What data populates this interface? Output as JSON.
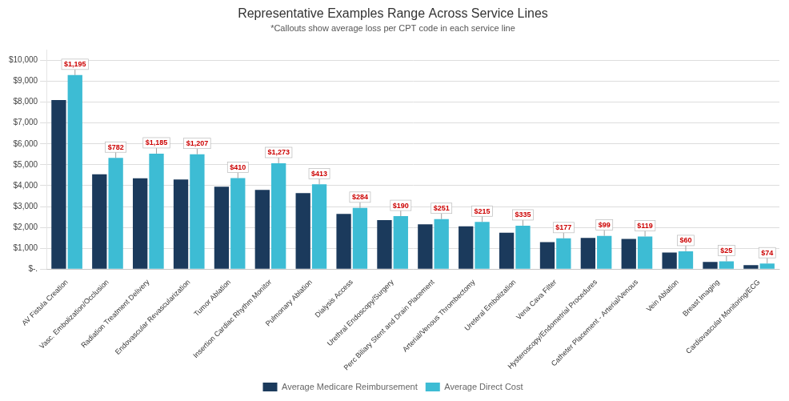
{
  "chart_data": {
    "type": "bar",
    "title": "Representative Examples Range Across Service Lines",
    "subtitle": "*Callouts show average loss per CPT code in each service line",
    "categories": [
      "AV Fistula Creation",
      "Vasc. Embolization/Occlusion",
      "Radiation Treatment Delivery",
      "Endovascular Revascularization",
      "Tumor Ablation",
      "Insertion Cardiac Rhythm Monitor",
      "Pulmonary Ablation",
      "Dialysis Access",
      "Urethral Endoscopy/Surgery",
      "Perc Biliary Stent and Drain Placement",
      "Arterial/Venous Thrombectomy",
      "Ureteral Embolization",
      "Vena Cava Filter",
      "Hysteroscopy/Endometrial Procedures",
      "Catheter Placement - Arterial/Venous",
      "Vein Ablation",
      "Breast Imaging",
      "Cardiovascular Monitoring/ECG"
    ],
    "series": [
      {
        "name": "Average Medicare Reimbursement",
        "color": "#1b3a5c",
        "values": [
          8100,
          4550,
          4350,
          4300,
          3950,
          3800,
          3650,
          2650,
          2350,
          2150,
          2050,
          1750,
          1300,
          1500,
          1450,
          800,
          350,
          200
        ]
      },
      {
        "name": "Average Direct Cost",
        "color": "#3dbcd4",
        "values": [
          9295,
          5332,
          5535,
          5507,
          4360,
          5073,
          4063,
          2934,
          2540,
          2401,
          2265,
          2085,
          1477,
          1599,
          1569,
          860,
          375,
          274
        ]
      }
    ],
    "annotations": [
      {
        "category": "AV Fistula Creation",
        "series": "Average Direct Cost",
        "text": "$1,195",
        "color": "#cc0000"
      },
      {
        "category": "Vasc. Embolization/Occlusion",
        "series": "Average Direct Cost",
        "text": "$782",
        "color": "#cc0000"
      },
      {
        "category": "Radiation Treatment Delivery",
        "series": "Average Direct Cost",
        "text": "$1,185",
        "color": "#cc0000"
      },
      {
        "category": "Endovascular Revascularization",
        "series": "Average Direct Cost",
        "text": "$1,207",
        "color": "#cc0000"
      },
      {
        "category": "Tumor Ablation",
        "series": "Average Direct Cost",
        "text": "$410",
        "color": "#cc0000"
      },
      {
        "category": "Insertion Cardiac Rhythm Monitor",
        "series": "Average Direct Cost",
        "text": "$1,273",
        "color": "#cc0000"
      },
      {
        "category": "Pulmonary Ablation",
        "series": "Average Direct Cost",
        "text": "$413",
        "color": "#cc0000"
      },
      {
        "category": "Dialysis Access",
        "series": "Average Direct Cost",
        "text": "$284",
        "color": "#cc0000"
      },
      {
        "category": "Urethral Endoscopy/Surgery",
        "series": "Average Direct Cost",
        "text": "$190",
        "color": "#cc0000"
      },
      {
        "category": "Perc Biliary Stent and Drain Placement",
        "series": "Average Direct Cost",
        "text": "$251",
        "color": "#cc0000"
      },
      {
        "category": "Arterial/Venous Thrombectomy",
        "series": "Average Direct Cost",
        "text": "$215",
        "color": "#cc0000"
      },
      {
        "category": "Ureteral Embolization",
        "series": "Average Direct Cost",
        "text": "$335",
        "color": "#cc0000"
      },
      {
        "category": "Vena Cava Filter",
        "series": "Average Direct Cost",
        "text": "$177",
        "color": "#cc0000"
      },
      {
        "category": "Hysteroscopy/Endometrial Procedures",
        "series": "Average Direct Cost",
        "text": "$99",
        "color": "#cc0000"
      },
      {
        "category": "Catheter Placement - Arterial/Venous",
        "series": "Average Direct Cost",
        "text": "$119",
        "color": "#cc0000"
      },
      {
        "category": "Vein Ablation",
        "series": "Average Direct Cost",
        "text": "$60",
        "color": "#cc0000"
      },
      {
        "category": "Breast Imaging",
        "series": "Average Direct Cost",
        "text": "$25",
        "color": "#cc0000"
      },
      {
        "category": "Cardiovascular Monitoring/ECG",
        "series": "Average Direct Cost",
        "text": "$74",
        "color": "#cc0000"
      }
    ],
    "ylim": [
      0,
      10500
    ],
    "yticks": [
      {
        "value": 0,
        "label": "$-."
      },
      {
        "value": 1000,
        "label": "$1,000"
      },
      {
        "value": 2000,
        "label": "$2,000"
      },
      {
        "value": 3000,
        "label": "$3,000"
      },
      {
        "value": 4000,
        "label": "$4,000"
      },
      {
        "value": 5000,
        "label": "$5,000"
      },
      {
        "value": 6000,
        "label": "$6,000"
      },
      {
        "value": 7000,
        "label": "$7,000"
      },
      {
        "value": 8000,
        "label": "$8,000"
      },
      {
        "value": 9000,
        "label": "$9,000"
      },
      {
        "value": 10000,
        "label": "$10,000"
      }
    ],
    "grid": true,
    "legend": "bottom"
  }
}
